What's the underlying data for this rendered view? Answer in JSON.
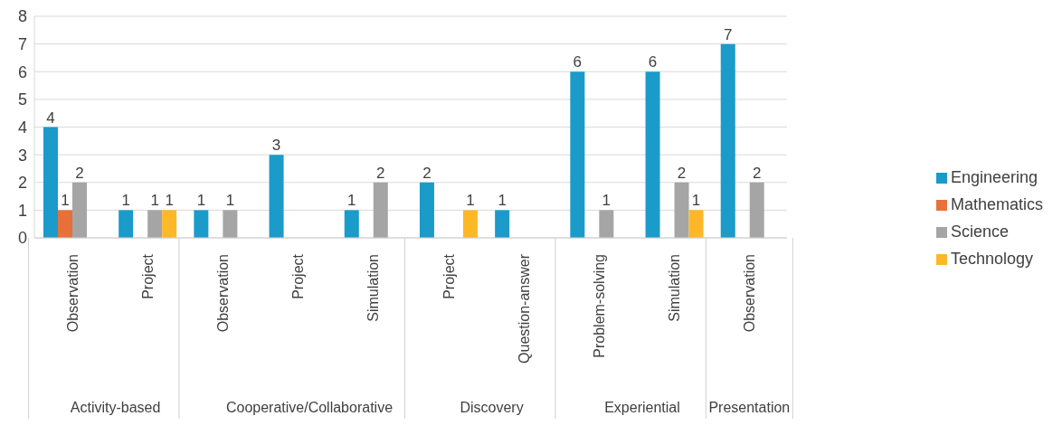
{
  "chart_data": {
    "type": "bar",
    "categories": [
      "Observation",
      "Project",
      "Observation",
      "Project",
      "Simulation",
      "Project",
      "Question-answer",
      "Problem-solving",
      "Simulation",
      "Observation"
    ],
    "series": [
      {
        "name": "Engineering",
        "color": "#1a9bc9",
        "values": [
          4,
          1,
          1,
          3,
          1,
          2,
          1,
          6,
          6,
          7
        ]
      },
      {
        "name": "Mathematics",
        "color": "#e8703a",
        "values": [
          1,
          null,
          null,
          null,
          null,
          null,
          null,
          null,
          null,
          null
        ]
      },
      {
        "name": "Science",
        "color": "#a5a5a5",
        "values": [
          2,
          1,
          1,
          null,
          2,
          null,
          null,
          1,
          2,
          2
        ]
      },
      {
        "name": "Technology",
        "color": "#fdb827",
        "values": [
          null,
          1,
          null,
          null,
          null,
          1,
          null,
          null,
          1,
          null
        ]
      }
    ],
    "annotations": [
      "Activity-based",
      "Cooperative/Collaborative",
      "Discovery",
      "Experiential",
      "Presentation"
    ],
    "ylim": [
      0,
      8
    ],
    "yticks": [
      0,
      1,
      2,
      3,
      4,
      5,
      6,
      7,
      8
    ],
    "grid": "y",
    "legend": "right",
    "data_labels": true
  }
}
